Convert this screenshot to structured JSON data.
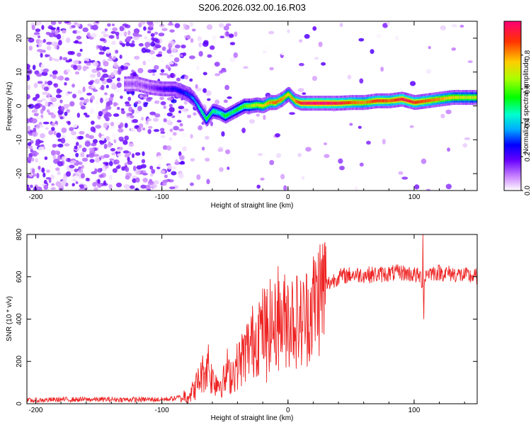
{
  "title": "S206.2026.032.00.16.R03",
  "chart_data": [
    {
      "type": "heatmap",
      "name": "spectrogram",
      "xlabel": "Height of straight line (km)",
      "ylabel": "Frequency (Hz)",
      "xlim": [
        -207,
        150
      ],
      "ylim": [
        -25,
        25
      ],
      "xticks": [
        -200,
        -100,
        0,
        100
      ],
      "yticks": [
        -20,
        -10,
        0,
        10,
        20
      ],
      "colorbar": {
        "label": "Normalized spectral amplitude",
        "range": [
          0,
          1
        ],
        "ticks": [
          "0.0",
          "0.2",
          "0.4",
          "0.6",
          "0.8"
        ],
        "tick_values": [
          0.0,
          0.2,
          0.4,
          0.6,
          0.8
        ]
      },
      "ridge": {
        "x": [
          -120,
          -110,
          -100,
          -90,
          -80,
          -75,
          -70,
          -65,
          -60,
          -55,
          -50,
          -45,
          -40,
          -35,
          -30,
          -25,
          -20,
          -15,
          -10,
          -5,
          0,
          5,
          10,
          20,
          30,
          40,
          50,
          60,
          70,
          80,
          90,
          100,
          110,
          120,
          130,
          140,
          150
        ],
        "y": [
          6.5,
          5.5,
          5.0,
          5.0,
          3.5,
          2.0,
          -1.0,
          -4.0,
          -1.5,
          -2.0,
          -3.0,
          -2.0,
          -1.0,
          0.0,
          0.0,
          0.3,
          0.0,
          1.0,
          1.0,
          2.0,
          3.5,
          1.5,
          0.8,
          0.8,
          0.8,
          0.8,
          1.0,
          1.0,
          1.5,
          1.5,
          2.0,
          1.0,
          1.5,
          2.0,
          2.5,
          2.5,
          2.5
        ],
        "amplitude": [
          0.12,
          0.15,
          0.2,
          0.25,
          0.3,
          0.35,
          0.45,
          0.55,
          0.5,
          0.45,
          0.55,
          0.5,
          0.55,
          0.6,
          0.65,
          0.7,
          0.75,
          0.8,
          0.85,
          0.8,
          0.75,
          0.8,
          0.95,
          1.0,
          1.0,
          0.95,
          0.85,
          0.8,
          0.9,
          0.85,
          0.95,
          0.9,
          0.85,
          0.8,
          0.75,
          0.7,
          0.7
        ]
      }
    },
    {
      "type": "line",
      "name": "snr",
      "xlabel": "Height of straight line (km)",
      "ylabel": "SNR (10 * v/v)",
      "xlim": [
        -207,
        150
      ],
      "ylim": [
        0,
        800
      ],
      "xticks": [
        -200,
        -100,
        0,
        100
      ],
      "yticks": [
        0,
        200,
        400,
        600,
        800
      ],
      "color": "#ee2222",
      "series": [
        {
          "name": "SNR",
          "x": [
            -207,
            -180,
            -150,
            -120,
            -100,
            -90,
            -80,
            -75,
            -70,
            -65,
            -60,
            -55,
            -50,
            -45,
            -40,
            -35,
            -30,
            -25,
            -20,
            -15,
            -10,
            -5,
            0,
            5,
            10,
            15,
            20,
            25,
            30,
            40,
            50,
            60,
            70,
            80,
            90,
            100,
            105,
            107,
            110,
            120,
            130,
            140,
            150
          ],
          "y": [
            15,
            20,
            20,
            20,
            20,
            25,
            40,
            60,
            120,
            170,
            120,
            100,
            110,
            140,
            180,
            230,
            280,
            320,
            350,
            370,
            360,
            390,
            400,
            410,
            380,
            420,
            470,
            520,
            560,
            600,
            610,
            610,
            610,
            615,
            620,
            610,
            600,
            560,
            620,
            620,
            615,
            605,
            600
          ]
        }
      ],
      "spikes": [
        {
          "x": -63,
          "y": 280
        },
        {
          "x": -48,
          "y": 260
        },
        {
          "x": -23,
          "y": 480
        },
        {
          "x": -8,
          "y": 650
        },
        {
          "x": -17,
          "y": 100
        },
        {
          "x": 0,
          "y": 560
        },
        {
          "x": 107,
          "y": 800
        },
        {
          "x": 107.5,
          "y": 400
        }
      ]
    }
  ]
}
